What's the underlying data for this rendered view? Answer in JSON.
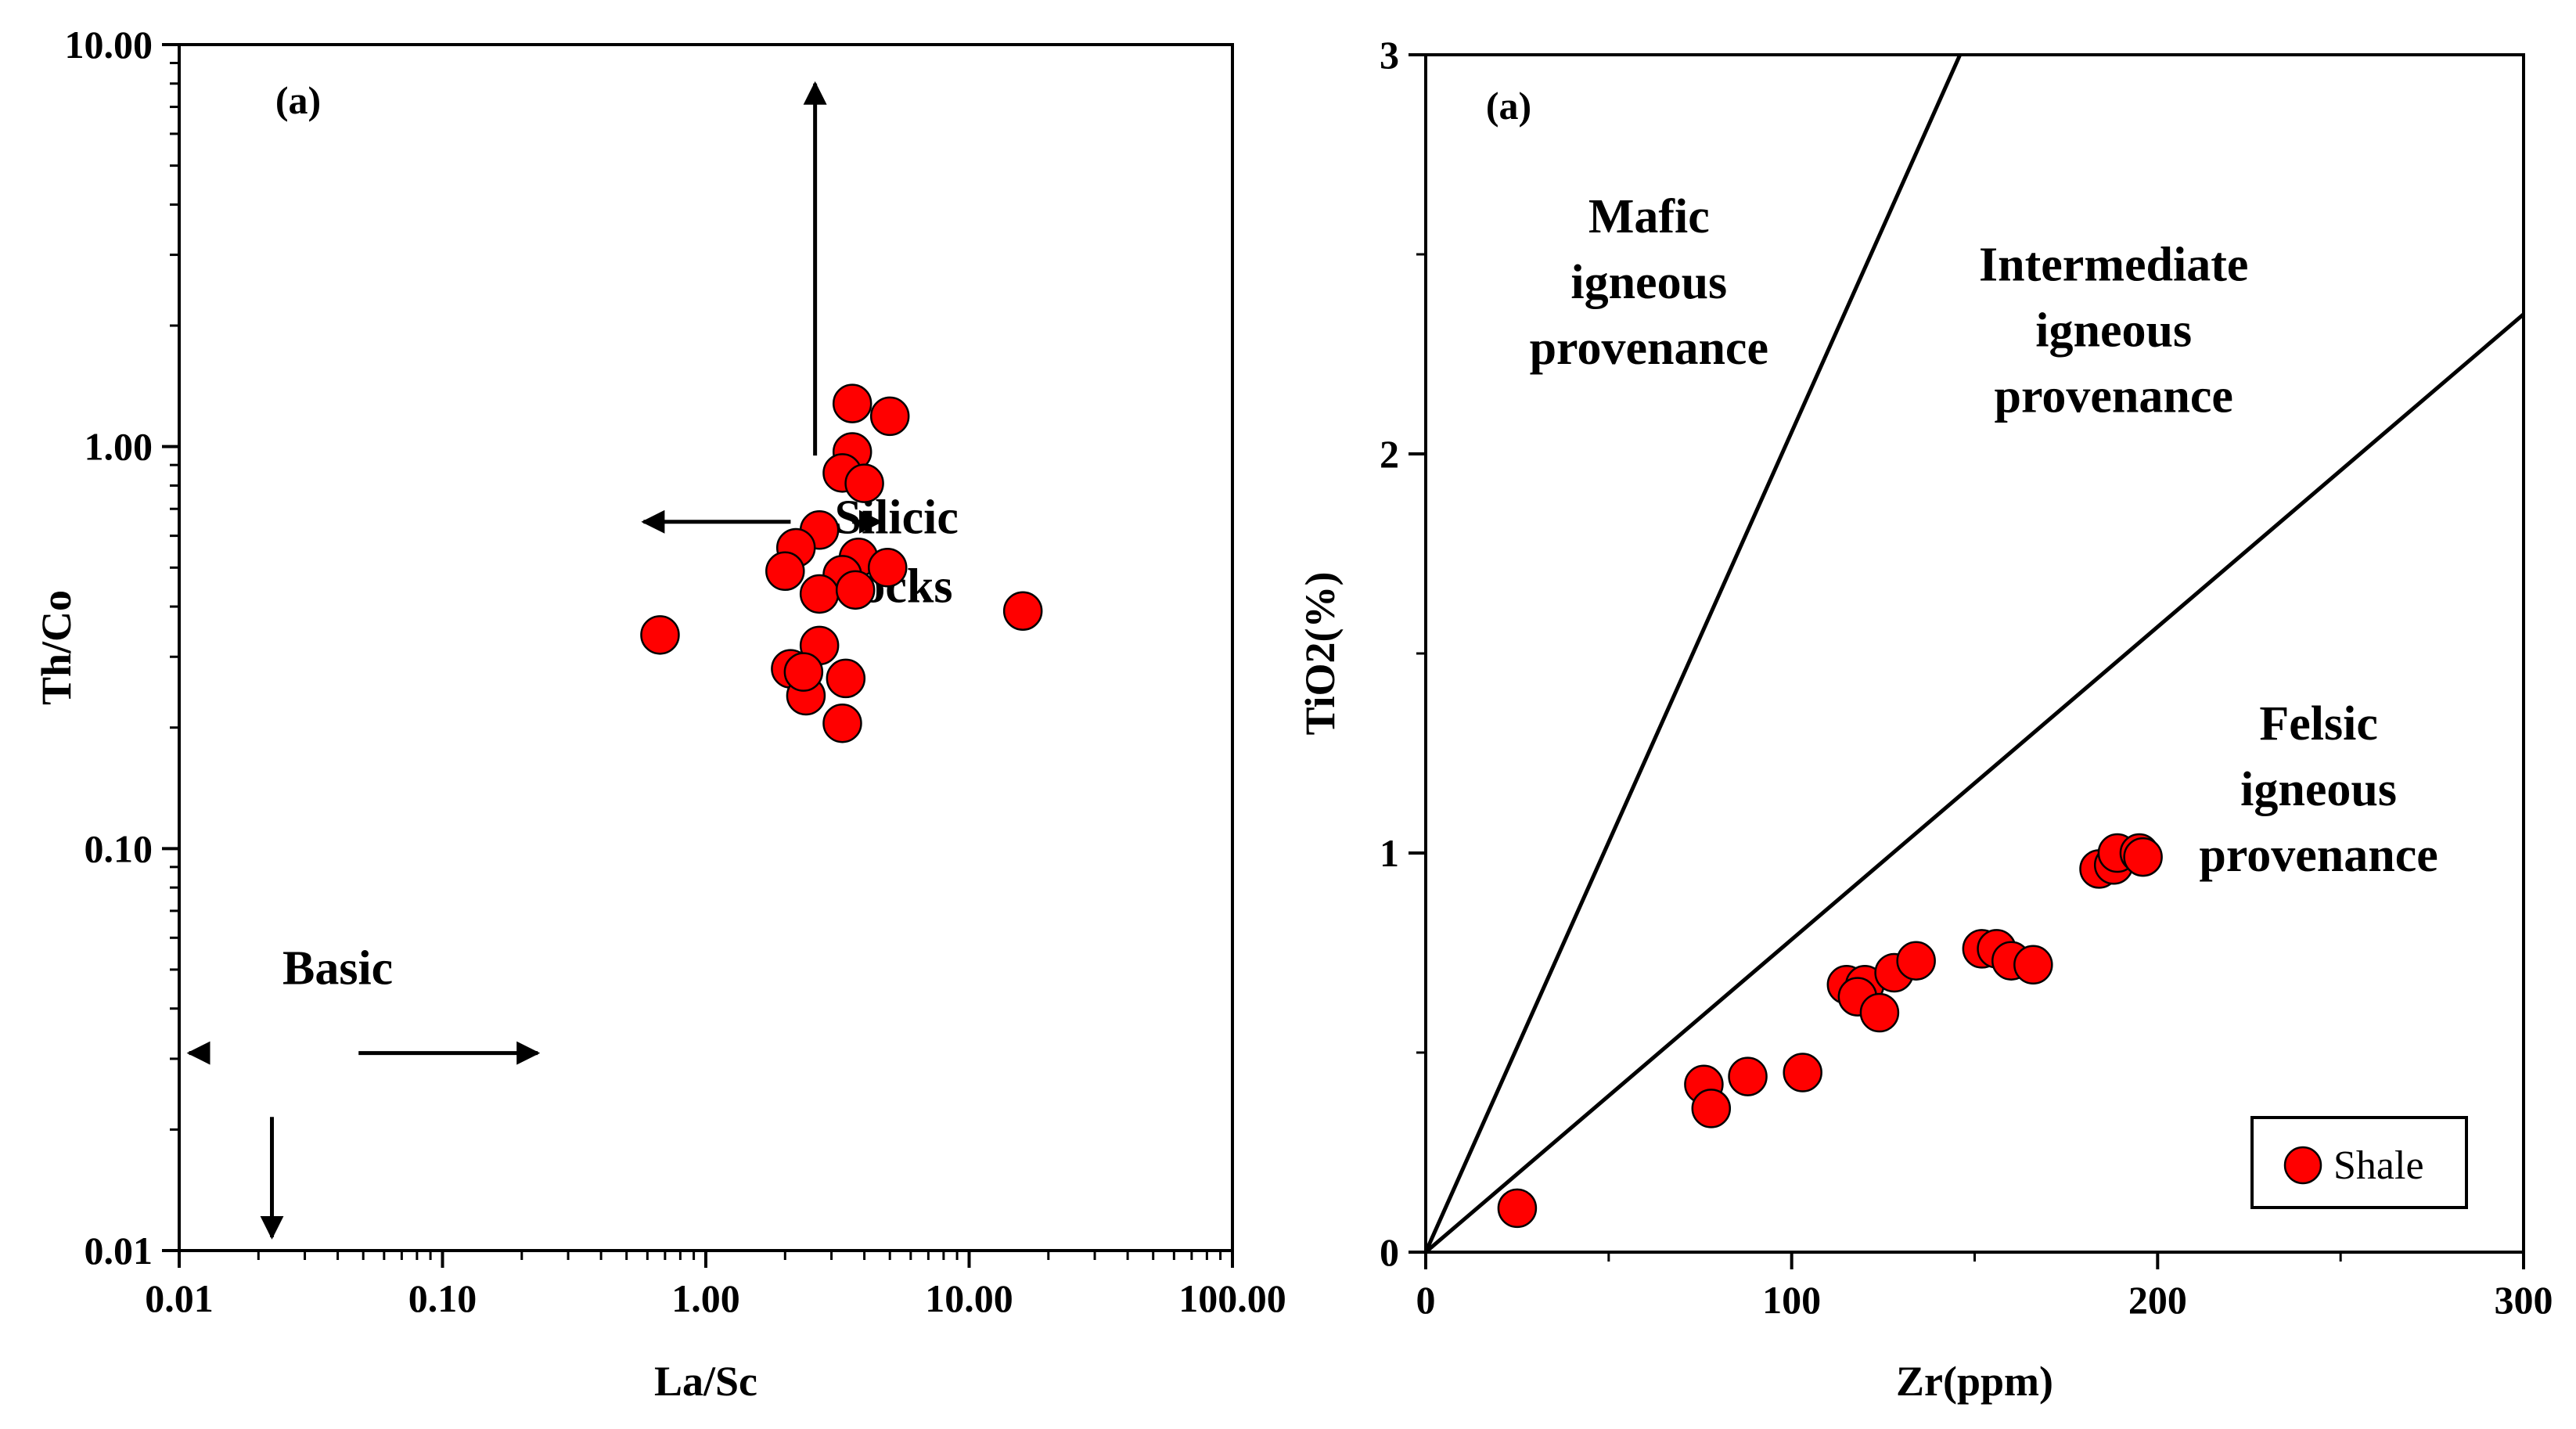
{
  "colors": {
    "marker": "#ff0000",
    "marker_edge": "#000000",
    "axis": "#000000"
  },
  "chart_data": [
    {
      "type": "scatter",
      "panel_label": "(a)",
      "xlabel": "La/Sc",
      "ylabel": "Th/Co",
      "xscale": "log",
      "yscale": "log",
      "xlim": [
        0.01,
        100
      ],
      "ylim": [
        0.01,
        10
      ],
      "xticks": [
        0.01,
        0.1,
        1,
        10,
        100
      ],
      "xtick_labels": [
        "0.01",
        "0.10",
        "1.00",
        "10.00",
        "100.00"
      ],
      "yticks": [
        0.01,
        0.1,
        1,
        10
      ],
      "ytick_labels": [
        "0.01",
        "0.10",
        "1.00",
        "10.00"
      ],
      "regions": [
        {
          "id": "silicic",
          "lines": [
            "Silicic",
            "rocks"
          ],
          "anchor": [
            5.3,
            0.5
          ]
        },
        {
          "id": "basic",
          "lines": [
            "Basic"
          ],
          "anchor": [
            0.04,
            0.046
          ]
        }
      ],
      "arrows": [
        {
          "from": [
            2.6,
            0.95
          ],
          "to": [
            2.6,
            8.0
          ]
        },
        {
          "from": [
            2.1,
            0.65
          ],
          "to": [
            0.58,
            0.65
          ]
        },
        {
          "from": [
            3.6,
            0.65
          ],
          "to": [
            4.6,
            0.65
          ]
        },
        {
          "from": [
            0.048,
            0.031
          ],
          "to": [
            0.23,
            0.031
          ]
        },
        {
          "from": [
            0.0125,
            0.031
          ],
          "to": [
            0.0109,
            0.031
          ]
        },
        {
          "from": [
            0.0225,
            0.0215
          ],
          "to": [
            0.0225,
            0.0108
          ]
        }
      ],
      "series": [
        {
          "name": "Shale",
          "points": [
            [
              3.6,
              1.28
            ],
            [
              5.0,
              1.19
            ],
            [
              3.6,
              0.97
            ],
            [
              3.3,
              0.86
            ],
            [
              4.0,
              0.81
            ],
            [
              2.7,
              0.62
            ],
            [
              2.2,
              0.56
            ],
            [
              2.0,
              0.49
            ],
            [
              3.8,
              0.53
            ],
            [
              3.3,
              0.48
            ],
            [
              4.9,
              0.5
            ],
            [
              2.7,
              0.43
            ],
            [
              3.7,
              0.44
            ],
            [
              0.67,
              0.34
            ],
            [
              16.0,
              0.39
            ],
            [
              2.7,
              0.32
            ],
            [
              2.1,
              0.28
            ],
            [
              2.4,
              0.24
            ],
            [
              2.35,
              0.275
            ],
            [
              3.4,
              0.265
            ],
            [
              3.3,
              0.205
            ]
          ]
        }
      ]
    },
    {
      "type": "scatter",
      "panel_label": "(a)",
      "xlabel": "Zr(ppm)",
      "ylabel": "TiO2(%)",
      "xlim": [
        0,
        300
      ],
      "ylim": [
        0,
        3
      ],
      "xticks": [
        0,
        100,
        200,
        300
      ],
      "xtick_labels": [
        "0",
        "100",
        "200",
        "300"
      ],
      "yticks": [
        0,
        1,
        2,
        3
      ],
      "ytick_labels": [
        "0",
        "1",
        "2",
        "3"
      ],
      "lines": [
        {
          "from": [
            0,
            0
          ],
          "to": [
            146,
            3
          ]
        },
        {
          "from": [
            0,
            0
          ],
          "to": [
            300,
            2.35
          ]
        }
      ],
      "regions": [
        {
          "id": "mafic",
          "lines": [
            "Mafic",
            "igneous",
            "provenance"
          ],
          "anchor": [
            61,
            2.39
          ]
        },
        {
          "id": "intermediate",
          "lines": [
            "Intermediate",
            "igneous",
            "provenance"
          ],
          "anchor": [
            188,
            2.27
          ]
        },
        {
          "id": "felsic",
          "lines": [
            "Felsic",
            "igneous",
            "provenance"
          ],
          "anchor": [
            244,
            1.12
          ]
        }
      ],
      "legend": {
        "position": "bottom-right",
        "entries": [
          "Shale"
        ]
      },
      "series": [
        {
          "name": "Shale",
          "points": [
            [
              25,
              0.11
            ],
            [
              76,
              0.42
            ],
            [
              78,
              0.36
            ],
            [
              88,
              0.44
            ],
            [
              103,
              0.45
            ],
            [
              115,
              0.67
            ],
            [
              120,
              0.67
            ],
            [
              118,
              0.64
            ],
            [
              124,
              0.6
            ],
            [
              128,
              0.7
            ],
            [
              134,
              0.73
            ],
            [
              152,
              0.76
            ],
            [
              156,
              0.76
            ],
            [
              160,
              0.73
            ],
            [
              166,
              0.72
            ],
            [
              184,
              0.96
            ],
            [
              188,
              0.97
            ],
            [
              189,
              1.0
            ],
            [
              195,
              1.0
            ],
            [
              196,
              0.99
            ]
          ]
        }
      ]
    }
  ]
}
